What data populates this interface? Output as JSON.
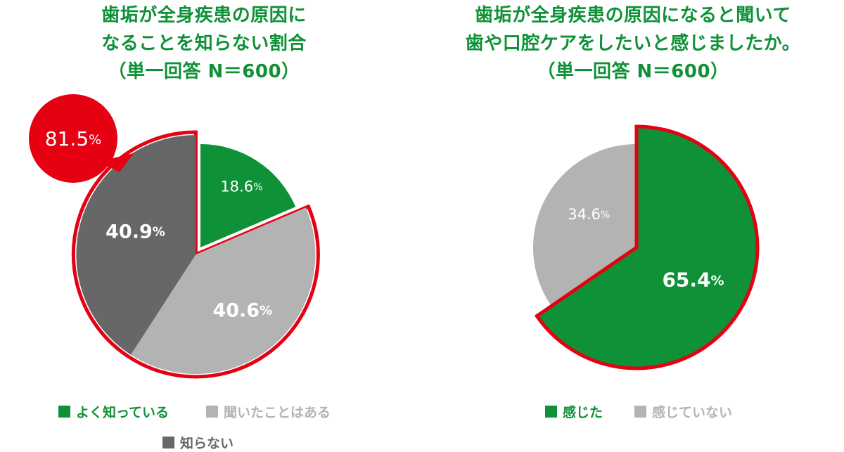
{
  "colors": {
    "green": "#0f9137",
    "light_gray": "#b3b3b3",
    "dark_gray": "#676767",
    "red": "#e50012",
    "white": "#ffffff"
  },
  "chart_data": [
    {
      "type": "pie",
      "title_lines": [
        "歯垢が全身疾患の原因に",
        "なることを知らない割合",
        "（単一回答 N＝600）"
      ],
      "slices": [
        {
          "name": "よく知っている",
          "value": 18.6,
          "label": "18.6",
          "color": "#0f9137"
        },
        {
          "name": "聞いたことはある",
          "value": 40.6,
          "label": "40.6",
          "color": "#b3b3b3"
        },
        {
          "name": "知らない",
          "value": 40.9,
          "label": "40.9",
          "color": "#676767"
        }
      ],
      "unit": "%",
      "callout": {
        "value": "81.5",
        "unit": "%"
      },
      "legend": [
        "よく知っている",
        "聞いたことはある",
        "知らない"
      ]
    },
    {
      "type": "pie",
      "title_lines": [
        "歯垢が全身疾患の原因になると聞いて",
        "歯や口腔ケアをしたいと感じましたか。",
        "（単一回答 N＝600）"
      ],
      "slices": [
        {
          "name": "感じた",
          "value": 65.4,
          "label": "65.4",
          "color": "#0f9137"
        },
        {
          "name": "感じていない",
          "value": 34.6,
          "label": "34.6",
          "color": "#b3b3b3"
        }
      ],
      "unit": "%",
      "legend": [
        "感じた",
        "感じていない"
      ]
    }
  ]
}
